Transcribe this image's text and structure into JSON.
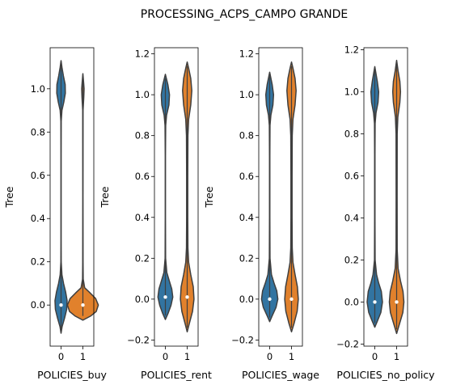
{
  "chart_data": {
    "type": "violin",
    "title": "PROCESSING_ACPS_CAMPO GRANDE",
    "colors": {
      "0": "#3274a1",
      "1": "#e1812c",
      "edge": "#3f3f3f"
    },
    "panels": [
      {
        "xlabel": "POLICIES_buy",
        "ylabel": "Tree",
        "ylim": [
          -0.19,
          1.19
        ],
        "yticks": [
          "0.0",
          "0.2",
          "0.4",
          "0.6",
          "0.8",
          "1.0"
        ],
        "categories": [
          "0",
          "1"
        ],
        "violins": [
          {
            "category": "0",
            "min": -0.13,
            "max": 1.13,
            "median": 0.0,
            "profile": [
              [
                -0.13,
                0
              ],
              [
                -0.1,
                0.06
              ],
              [
                -0.06,
                0.2
              ],
              [
                -0.02,
                0.32
              ],
              [
                0.02,
                0.34
              ],
              [
                0.06,
                0.26
              ],
              [
                0.1,
                0.14
              ],
              [
                0.14,
                0.05
              ],
              [
                0.2,
                0.01
              ],
              [
                0.3,
                0.006
              ],
              [
                0.5,
                0.004
              ],
              [
                0.7,
                0.004
              ],
              [
                0.85,
                0.01
              ],
              [
                0.9,
                0.05
              ],
              [
                0.94,
                0.16
              ],
              [
                0.98,
                0.24
              ],
              [
                1.02,
                0.23
              ],
              [
                1.06,
                0.13
              ],
              [
                1.1,
                0.05
              ],
              [
                1.13,
                0
              ]
            ]
          },
          {
            "category": "1",
            "min": -0.07,
            "max": 1.07,
            "median": 0.0,
            "profile": [
              [
                -0.07,
                0
              ],
              [
                -0.05,
                0.45
              ],
              [
                -0.03,
                0.75
              ],
              [
                0.0,
                0.87
              ],
              [
                0.03,
                0.72
              ],
              [
                0.06,
                0.36
              ],
              [
                0.08,
                0.1
              ],
              [
                0.12,
                0.02
              ],
              [
                0.2,
                0.008
              ],
              [
                0.5,
                0.006
              ],
              [
                0.9,
                0.01
              ],
              [
                0.96,
                0.05
              ],
              [
                1.0,
                0.07
              ],
              [
                1.03,
                0.04
              ],
              [
                1.07,
                0
              ]
            ]
          }
        ]
      },
      {
        "xlabel": "POLICIES_rent",
        "ylabel": "Tree",
        "ylim": [
          -0.23,
          1.23
        ],
        "yticks": [
          "−0.2",
          "0.0",
          "0.2",
          "0.4",
          "0.6",
          "0.8",
          "1.0",
          "1.2"
        ],
        "categories": [
          "0",
          "1"
        ],
        "violins": [
          {
            "category": "0",
            "min": -0.1,
            "max": 1.1,
            "median": 0.01,
            "profile": [
              [
                -0.1,
                0
              ],
              [
                -0.07,
                0.15
              ],
              [
                -0.03,
                0.32
              ],
              [
                0.01,
                0.42
              ],
              [
                0.05,
                0.36
              ],
              [
                0.09,
                0.22
              ],
              [
                0.13,
                0.08
              ],
              [
                0.2,
                0.015
              ],
              [
                0.4,
                0.006
              ],
              [
                0.7,
                0.006
              ],
              [
                0.85,
                0.02
              ],
              [
                0.9,
                0.07
              ],
              [
                0.95,
                0.2
              ],
              [
                1.0,
                0.23
              ],
              [
                1.05,
                0.14
              ],
              [
                1.1,
                0
              ]
            ]
          },
          {
            "category": "1",
            "min": -0.16,
            "max": 1.16,
            "median": 0.01,
            "profile": [
              [
                -0.16,
                0
              ],
              [
                -0.12,
                0.12
              ],
              [
                -0.06,
                0.3
              ],
              [
                0.0,
                0.38
              ],
              [
                0.06,
                0.34
              ],
              [
                0.12,
                0.2
              ],
              [
                0.18,
                0.08
              ],
              [
                0.25,
                0.04
              ],
              [
                0.4,
                0.03
              ],
              [
                0.6,
                0.03
              ],
              [
                0.8,
                0.04
              ],
              [
                0.88,
                0.08
              ],
              [
                0.95,
                0.2
              ],
              [
                1.02,
                0.26
              ],
              [
                1.08,
                0.2
              ],
              [
                1.13,
                0.08
              ],
              [
                1.16,
                0
              ]
            ]
          }
        ]
      },
      {
        "xlabel": "POLICIES_wage",
        "ylabel": "Tree",
        "ylim": [
          -0.23,
          1.23
        ],
        "yticks": [
          "−0.2",
          "0.0",
          "0.2",
          "0.4",
          "0.6",
          "0.8",
          "1.0",
          "1.2"
        ],
        "categories": [
          "0",
          "1"
        ],
        "violins": [
          {
            "category": "0",
            "min": -0.11,
            "max": 1.11,
            "median": 0.0,
            "profile": [
              [
                -0.11,
                0
              ],
              [
                -0.08,
                0.15
              ],
              [
                -0.04,
                0.36
              ],
              [
                0.0,
                0.46
              ],
              [
                0.04,
                0.4
              ],
              [
                0.08,
                0.24
              ],
              [
                0.12,
                0.1
              ],
              [
                0.2,
                0.02
              ],
              [
                0.4,
                0.008
              ],
              [
                0.7,
                0.008
              ],
              [
                0.85,
                0.02
              ],
              [
                0.9,
                0.07
              ],
              [
                0.95,
                0.18
              ],
              [
                1.0,
                0.22
              ],
              [
                1.05,
                0.14
              ],
              [
                1.11,
                0
              ]
            ]
          },
          {
            "category": "1",
            "min": -0.16,
            "max": 1.16,
            "median": 0.0,
            "profile": [
              [
                -0.16,
                0
              ],
              [
                -0.12,
                0.14
              ],
              [
                -0.06,
                0.32
              ],
              [
                0.0,
                0.38
              ],
              [
                0.06,
                0.33
              ],
              [
                0.12,
                0.2
              ],
              [
                0.18,
                0.08
              ],
              [
                0.25,
                0.04
              ],
              [
                0.4,
                0.03
              ],
              [
                0.6,
                0.03
              ],
              [
                0.8,
                0.04
              ],
              [
                0.88,
                0.08
              ],
              [
                0.95,
                0.2
              ],
              [
                1.02,
                0.26
              ],
              [
                1.08,
                0.2
              ],
              [
                1.13,
                0.08
              ],
              [
                1.16,
                0
              ]
            ]
          }
        ]
      },
      {
        "xlabel": "POLICIES_no_policy",
        "ylabel": "",
        "ylim": [
          -0.21,
          1.21
        ],
        "yticks": [
          "−0.2",
          "0.0",
          "0.2",
          "0.4",
          "0.6",
          "0.8",
          "1.0",
          "1.2"
        ],
        "categories": [
          "0",
          "1"
        ],
        "violins": [
          {
            "category": "0",
            "min": -0.12,
            "max": 1.12,
            "median": 0.0,
            "profile": [
              [
                -0.12,
                0
              ],
              [
                -0.09,
                0.15
              ],
              [
                -0.05,
                0.34
              ],
              [
                0.0,
                0.43
              ],
              [
                0.05,
                0.37
              ],
              [
                0.09,
                0.22
              ],
              [
                0.13,
                0.1
              ],
              [
                0.2,
                0.02
              ],
              [
                0.4,
                0.008
              ],
              [
                0.7,
                0.008
              ],
              [
                0.85,
                0.02
              ],
              [
                0.9,
                0.07
              ],
              [
                0.95,
                0.18
              ],
              [
                1.0,
                0.22
              ],
              [
                1.05,
                0.14
              ],
              [
                1.12,
                0
              ]
            ]
          },
          {
            "category": "1",
            "min": -0.15,
            "max": 1.15,
            "median": 0.0,
            "profile": [
              [
                -0.15,
                0
              ],
              [
                -0.11,
                0.14
              ],
              [
                -0.05,
                0.35
              ],
              [
                0.0,
                0.41
              ],
              [
                0.05,
                0.36
              ],
              [
                0.1,
                0.22
              ],
              [
                0.16,
                0.08
              ],
              [
                0.25,
                0.03
              ],
              [
                0.5,
                0.025
              ],
              [
                0.8,
                0.03
              ],
              [
                0.88,
                0.07
              ],
              [
                0.95,
                0.18
              ],
              [
                1.0,
                0.22
              ],
              [
                1.05,
                0.18
              ],
              [
                1.1,
                0.08
              ],
              [
                1.15,
                0
              ]
            ]
          }
        ]
      }
    ]
  }
}
